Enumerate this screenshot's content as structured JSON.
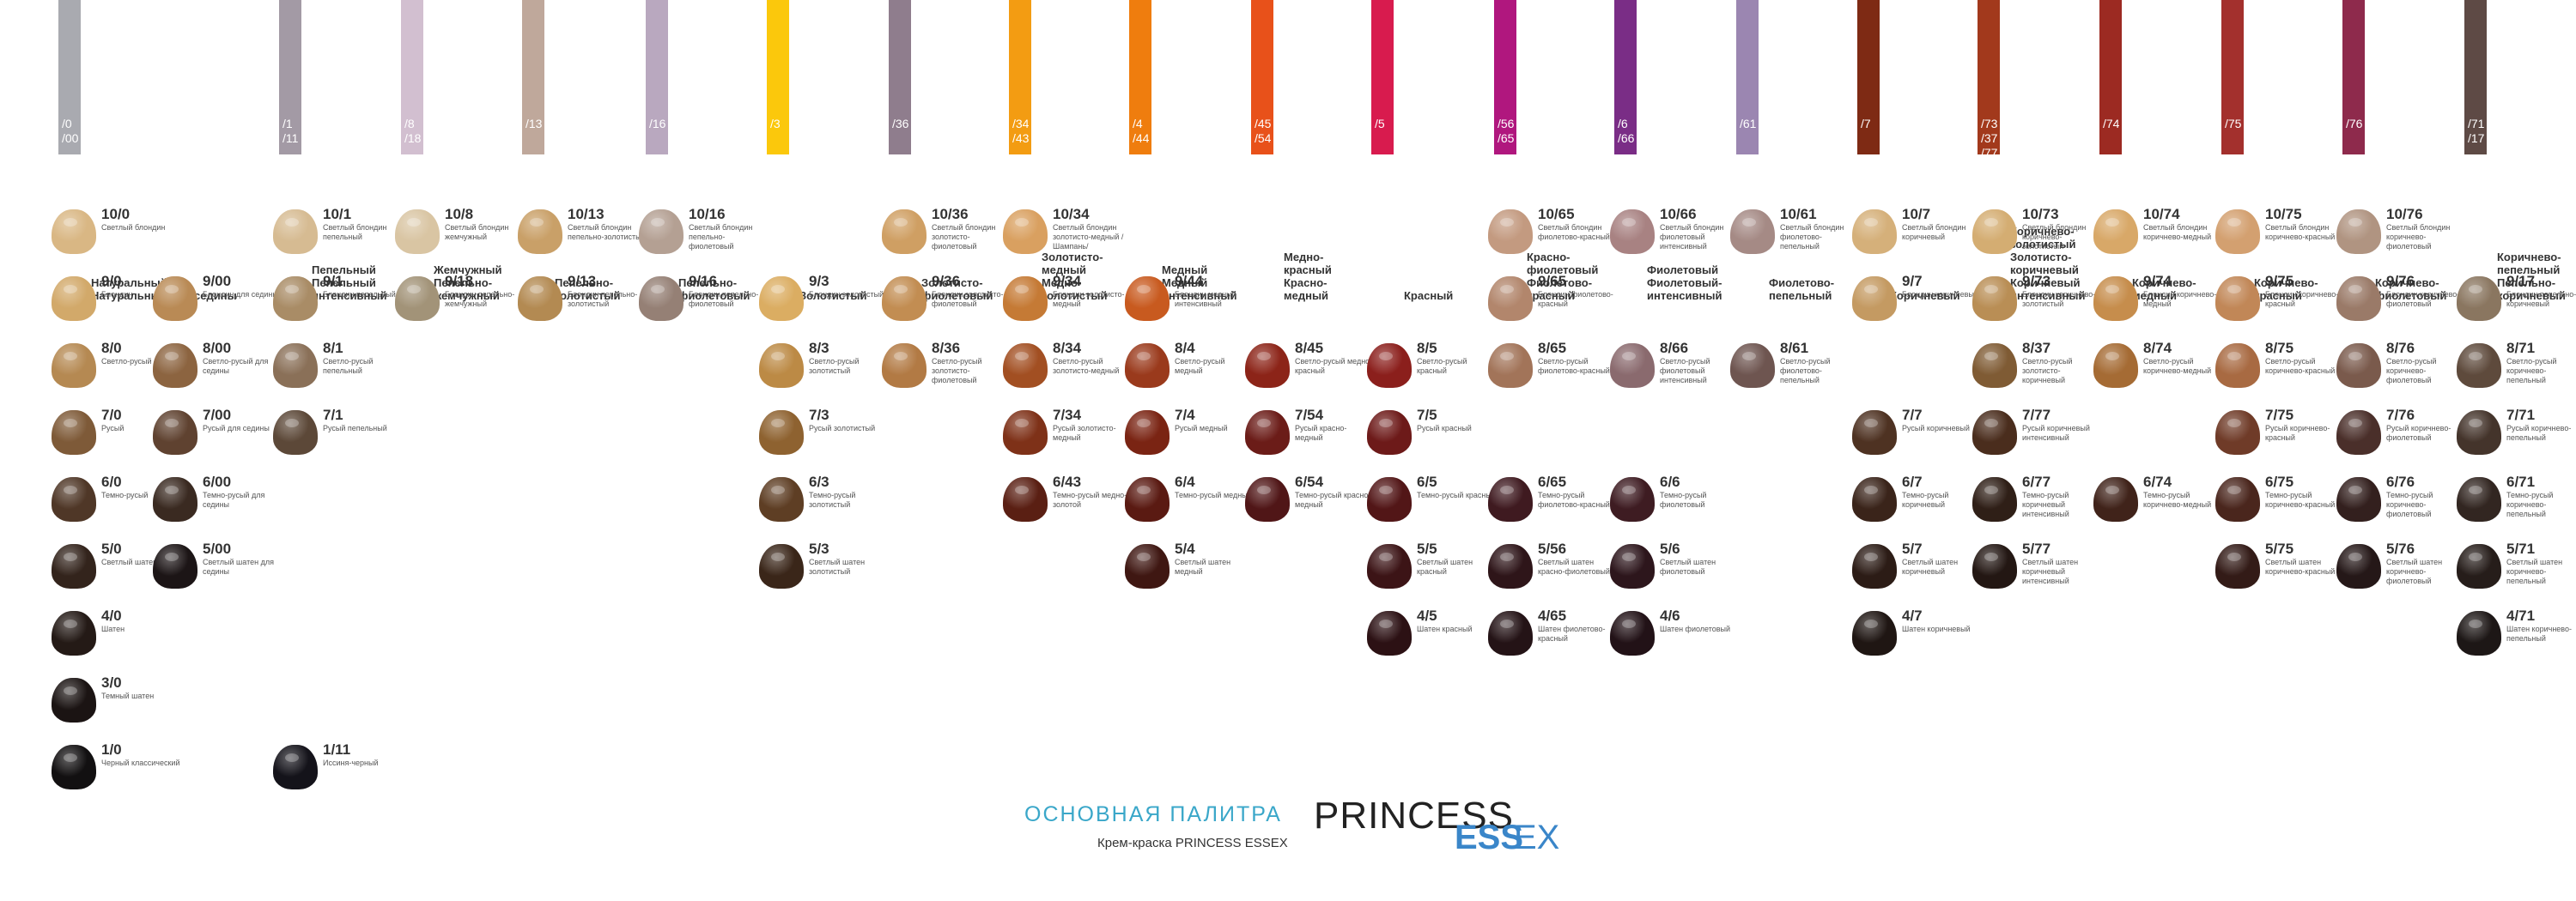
{
  "headers": [
    {
      "codes": [
        "/0",
        "/00"
      ],
      "names": [
        "Натуральный",
        "Натуральный для седины"
      ],
      "color": "#a9aab0"
    },
    {
      "codes": [
        "/1",
        "/11"
      ],
      "names": [
        "Пепельный",
        "Пепельный",
        "интенсивный"
      ],
      "color": "#a39aa5"
    },
    {
      "codes": [
        "/8",
        "/18"
      ],
      "names": [
        "Жемчужный",
        "Пепельно-",
        "жемчужный"
      ],
      "color": "#d2bfd0"
    },
    {
      "codes": [
        "/13"
      ],
      "names": [
        "Пепельно-",
        "золотистый"
      ],
      "color": "#bfa89b"
    },
    {
      "codes": [
        "/16"
      ],
      "names": [
        "Пепельно-",
        "фиолетовый"
      ],
      "color": "#b9a8bf"
    },
    {
      "codes": [
        "/3"
      ],
      "names": [
        "Золотистый"
      ],
      "color": "#fbc80c"
    },
    {
      "codes": [
        "/36"
      ],
      "names": [
        "Золотисто-",
        "фиолетовый"
      ],
      "color": "#8f7d8d"
    },
    {
      "codes": [
        "/34",
        "/43"
      ],
      "names": [
        "Золотисто-",
        "медный",
        "Медно-",
        "золотистый"
      ],
      "color": "#f39c12"
    },
    {
      "codes": [
        "/4",
        "/44"
      ],
      "names": [
        "Медный",
        "Медный",
        "интенсивный"
      ],
      "color": "#ef7d0e"
    },
    {
      "codes": [
        "/45",
        "/54"
      ],
      "names": [
        "Медно-",
        "красный",
        "Красно-",
        "медный"
      ],
      "color": "#e8511a"
    },
    {
      "codes": [
        "/5"
      ],
      "names": [
        "Красный"
      ],
      "color": "#d81b4e"
    },
    {
      "codes": [
        "/56",
        "/65"
      ],
      "names": [
        "Красно-",
        "фиолетовый",
        "Фиолетово-",
        "красный"
      ],
      "color": "#b0177e"
    },
    {
      "codes": [
        "/6",
        "/66"
      ],
      "names": [
        "Фиолетовый",
        "Фиолетовый-",
        "интенсивный"
      ],
      "color": "#7a2d86"
    },
    {
      "codes": [
        "/61"
      ],
      "names": [
        "Фиолетово-",
        "пепельный"
      ],
      "color": "#9b86b1"
    },
    {
      "codes": [
        "/7"
      ],
      "names": [
        "Коричневый"
      ],
      "color": "#7e2a14"
    },
    {
      "codes": [
        "/73",
        "/37",
        "/77"
      ],
      "names": [
        "Коричнево-",
        "золотистый",
        "Золотисто-",
        "коричневый",
        "Коричневый",
        "интенсивный"
      ],
      "color": "#a2391c"
    },
    {
      "codes": [
        "/74"
      ],
      "names": [
        "Коричнево-",
        "медный"
      ],
      "color": "#9c2a22"
    },
    {
      "codes": [
        "/75"
      ],
      "names": [
        "Коричнево-",
        "красный"
      ],
      "color": "#a3302d"
    },
    {
      "codes": [
        "/76"
      ],
      "names": [
        "Коричнево-",
        "фиолетовый"
      ],
      "color": "#8e2a4c"
    },
    {
      "codes": [
        "/71",
        "/17"
      ],
      "names": [
        "Коричнево-",
        "пепельный",
        "Пепельно-",
        "коричневый"
      ],
      "color": "#5e4a45"
    }
  ],
  "swatches": [
    {
      "code": "10/0",
      "name": "Светлый блондин",
      "color": "#d9b784"
    },
    {
      "code": "9/0",
      "name": "Блондин",
      "color": "#d2a96a"
    },
    {
      "code": "8/0",
      "name": "Светло-русый",
      "color": "#b58952"
    },
    {
      "code": "7/0",
      "name": "Русый",
      "color": "#7e5a38"
    },
    {
      "code": "6/0",
      "name": "Темно-русый",
      "color": "#4f3727"
    },
    {
      "code": "5/0",
      "name": "Светлый шатен",
      "color": "#33241c"
    },
    {
      "code": "4/0",
      "name": "Шатен",
      "color": "#241a16"
    },
    {
      "code": "3/0",
      "name": "Темный шатен",
      "color": "#1b1413"
    },
    {
      "code": "1/0",
      "name": "Черный классический",
      "color": "#121011"
    },
    {
      "code": "9/00",
      "name": "Блондин для седины",
      "color": "#b98a55"
    },
    {
      "code": "8/00",
      "name": "Светло-русый для седины",
      "color": "#8c6440"
    },
    {
      "code": "7/00",
      "name": "Русый для седины",
      "color": "#5f4230"
    },
    {
      "code": "6/00",
      "name": "Темно-русый для седины",
      "color": "#3a2a21"
    },
    {
      "code": "5/00",
      "name": "Светлый шатен для седины",
      "color": "#1c1516"
    },
    {
      "code": "10/1",
      "name": "Светлый блондин пепельный",
      "color": "#d6bb92"
    },
    {
      "code": "9/1",
      "name": "Блондин пепельный",
      "color": "#a98c66"
    },
    {
      "code": "8/1",
      "name": "Светло-русый пепельный",
      "color": "#8a7058"
    },
    {
      "code": "7/1",
      "name": "Русый пепельный",
      "color": "#5c4838"
    },
    {
      "code": "1/11",
      "name": "Иссиня-черный",
      "color": "#14131a"
    },
    {
      "code": "10/8",
      "name": "Светлый блондин жемчужный",
      "color": "#d9c5a3"
    },
    {
      "code": "9/18",
      "name": "Блондин пепельно-жемчужный",
      "color": "#a29378"
    },
    {
      "code": "10/13",
      "name": "Светлый блондин пепельно-золотистый",
      "color": "#c9a068"
    },
    {
      "code": "9/13",
      "name": "Блондин пепельно-золотистый",
      "color": "#b38a52"
    },
    {
      "code": "10/16",
      "name": "Светлый блондин пепельно-фиолетовый",
      "color": "#b4a093"
    },
    {
      "code": "9/16",
      "name": "Блондин пепельно-фиолетовый",
      "color": "#958075"
    },
    {
      "code": "9/3",
      "name": "Блондин золотистый",
      "color": "#dbad62"
    },
    {
      "code": "8/3",
      "name": "Светло-русый золотистый",
      "color": "#bc8a45"
    },
    {
      "code": "7/3",
      "name": "Русый золотистый",
      "color": "#8e6230"
    },
    {
      "code": "6/3",
      "name": "Темно-русый золотистый",
      "color": "#5e3e24"
    },
    {
      "code": "5/3",
      "name": "Светлый шатен золотистый",
      "color": "#3a2619"
    },
    {
      "code": "10/36",
      "name": "Светлый блондин золотисто-фиолетовый",
      "color": "#cf9f63"
    },
    {
      "code": "9/36",
      "name": "Блондин золотисто-фиолетовый",
      "color": "#c28d52"
    },
    {
      "code": "8/36",
      "name": "Светло-русый золотисто-фиолетовый",
      "color": "#b27a44"
    },
    {
      "code": "10/34",
      "name": "Светлый блондин золотисто-медный /Шампань/",
      "color": "#d9a060"
    },
    {
      "code": "9/34",
      "name": "Блондин золотисто-медный",
      "color": "#c57a35"
    },
    {
      "code": "8/34",
      "name": "Светло-русый золотисто-медный",
      "color": "#a24f22"
    },
    {
      "code": "7/34",
      "name": "Русый золотисто-медный",
      "color": "#7e3118"
    },
    {
      "code": "6/43",
      "name": "Темно-русый медно-золотой",
      "color": "#5a1f13"
    },
    {
      "code": "9/44",
      "name": "Блондин медный интенсивный",
      "color": "#c85a1f"
    },
    {
      "code": "8/4",
      "name": "Светло-русый медный",
      "color": "#9a3a1c"
    },
    {
      "code": "7/4",
      "name": "Русый медный",
      "color": "#7a2413"
    },
    {
      "code": "6/4",
      "name": "Темно-русый медный",
      "color": "#5a1a12"
    },
    {
      "code": "5/4",
      "name": "Светлый шатен медный",
      "color": "#3f1712"
    },
    {
      "code": "8/45",
      "name": "Светло-русый медно-красный",
      "color": "#8c2418"
    },
    {
      "code": "7/54",
      "name": "Русый красно-медный",
      "color": "#6b1c18"
    },
    {
      "code": "6/54",
      "name": "Темно-русый красно-медный",
      "color": "#501617"
    },
    {
      "code": "8/5",
      "name": "Светло-русый красный",
      "color": "#8b1f1c"
    },
    {
      "code": "7/5",
      "name": "Русый красный",
      "color": "#6d1a19"
    },
    {
      "code": "6/5",
      "name": "Темно-русый красный",
      "color": "#521617"
    },
    {
      "code": "5/5",
      "name": "Светлый шатен красный",
      "color": "#3c1416"
    },
    {
      "code": "4/5",
      "name": "Шатен красный",
      "color": "#2c1114"
    },
    {
      "code": "10/65",
      "name": "Светлый блондин фиолетово-красный",
      "color": "#c39a80"
    },
    {
      "code": "9/65",
      "name": "Блондин фиолетово-красный",
      "color": "#b2866c"
    },
    {
      "code": "8/65",
      "name": "Светло-русый фиолетово-красный",
      "color": "#a27459"
    },
    {
      "code": "6/65",
      "name": "Темно-русый фиолетово-красный",
      "color": "#3f1a20"
    },
    {
      "code": "5/56",
      "name": "Светлый шатен красно-фиолетовый",
      "color": "#2e1519"
    },
    {
      "code": "4/65",
      "name": "Шатен фиолетово-красный",
      "color": "#241316"
    },
    {
      "code": "10/66",
      "name": "Светлый блондин фиолетовый интенсивный",
      "color": "#a88282"
    },
    {
      "code": "8/66",
      "name": "Светло-русый фиолетовый интенсивный",
      "color": "#8a6a6e"
    },
    {
      "code": "6/6",
      "name": "Темно-русый фиолетовый",
      "color": "#3e1c22"
    },
    {
      "code": "5/6",
      "name": "Светлый шатен фиолетовый",
      "color": "#2d161c"
    },
    {
      "code": "4/6",
      "name": "Шатен фиолетовый",
      "color": "#221217"
    },
    {
      "code": "10/61",
      "name": "Светлый блондин фиолетово-пепельный",
      "color": "#a58a85"
    },
    {
      "code": "8/61",
      "name": "Светло-русый фиолетово-пепельный",
      "color": "#6e5550"
    },
    {
      "code": "10/7",
      "name": "Светлый блондин коричневый",
      "color": "#d5b07a"
    },
    {
      "code": "9/7",
      "name": "Блондин коричневый",
      "color": "#c49a62"
    },
    {
      "code": "7/7",
      "name": "Русый коричневый",
      "color": "#4e3222"
    },
    {
      "code": "6/7",
      "name": "Темно-русый коричневый",
      "color": "#3a241a"
    },
    {
      "code": "5/7",
      "name": "Светлый шатен коричневый",
      "color": "#2c1c16"
    },
    {
      "code": "4/7",
      "name": "Шатен коричневый",
      "color": "#1f1613"
    },
    {
      "code": "10/73",
      "name": "Светлый блондин коричнево-золотистый",
      "color": "#d4ad72"
    },
    {
      "code": "9/73",
      "name": "Блондин коричнево-золотистый",
      "color": "#b98e55"
    },
    {
      "code": "8/37",
      "name": "Светло-русый золотисто-коричневый",
      "color": "#7f5b34"
    },
    {
      "code": "7/77",
      "name": "Русый коричневый интенсивный",
      "color": "#4a2d1d"
    },
    {
      "code": "6/77",
      "name": "Темно-русый коричневый интенсивный",
      "color": "#2f1f17"
    },
    {
      "code": "5/77",
      "name": "Светлый шатен коричневый интенсивный",
      "color": "#231713"
    },
    {
      "code": "10/74",
      "name": "Светлый блондин коричнево-медный",
      "color": "#d8a868"
    },
    {
      "code": "9/74",
      "name": "Блондин коричнево-медный",
      "color": "#c68d4c"
    },
    {
      "code": "8/74",
      "name": "Светло-русый коричнево-медный",
      "color": "#a56b34"
    },
    {
      "code": "6/74",
      "name": "Темно-русый коричнево-медный",
      "color": "#40231a"
    },
    {
      "code": "10/75",
      "name": "Светлый блондин коричнево-красный",
      "color": "#d3a070"
    },
    {
      "code": "9/75",
      "name": "Блондин коричнево-красный",
      "color": "#c18757"
    },
    {
      "code": "8/75",
      "name": "Светло-русый коричнево-красный",
      "color": "#a86a42"
    },
    {
      "code": "7/75",
      "name": "Русый коричнево-красный",
      "color": "#6f3b28"
    },
    {
      "code": "6/75",
      "name": "Темно-русый коричнево-красный",
      "color": "#4a261d"
    },
    {
      "code": "5/75",
      "name": "Светлый шатен коричнево-красный",
      "color": "#331b17"
    },
    {
      "code": "10/76",
      "name": "Светлый блондин коричнево-фиолетовый",
      "color": "#b09481"
    },
    {
      "code": "9/76",
      "name": "Блондин коричнево-фиолетовый",
      "color": "#9a7a68"
    },
    {
      "code": "8/76",
      "name": "Светло-русый коричнево-фиолетовый",
      "color": "#7a5a4c"
    },
    {
      "code": "7/76",
      "name": "Русый коричнево-фиолетовый",
      "color": "#4a2f2a"
    },
    {
      "code": "6/76",
      "name": "Темно-русый коричнево-фиолетовый",
      "color": "#33201e"
    },
    {
      "code": "5/76",
      "name": "Светлый шатен коричнево-фиолетовый",
      "color": "#251818"
    },
    {
      "code": "9/17",
      "name": "Блондин пепельно-коричневый",
      "color": "#8a7660"
    },
    {
      "code": "8/71",
      "name": "Светло-русый коричнево-пепельный",
      "color": "#5e4a3c"
    },
    {
      "code": "7/71",
      "name": "Русый коричнево-пепельный",
      "color": "#44342b"
    },
    {
      "code": "6/71",
      "name": "Темно-русый коричнево-пепельный",
      "color": "#322621"
    },
    {
      "code": "5/71",
      "name": "Светлый шатен коричнево-пепельный",
      "color": "#261d1a"
    },
    {
      "code": "4/71",
      "name": "Шатен коричнево-пепельный",
      "color": "#1d1716"
    }
  ],
  "footer": {
    "title": "ОСНОВНАЯ ПАЛИТРА",
    "subtitle": "Крем-краска PRINCESS ESSEX",
    "logo_main": "PRINCESS",
    "logo_sub": "ESS",
    "logo_ex": "EX"
  }
}
